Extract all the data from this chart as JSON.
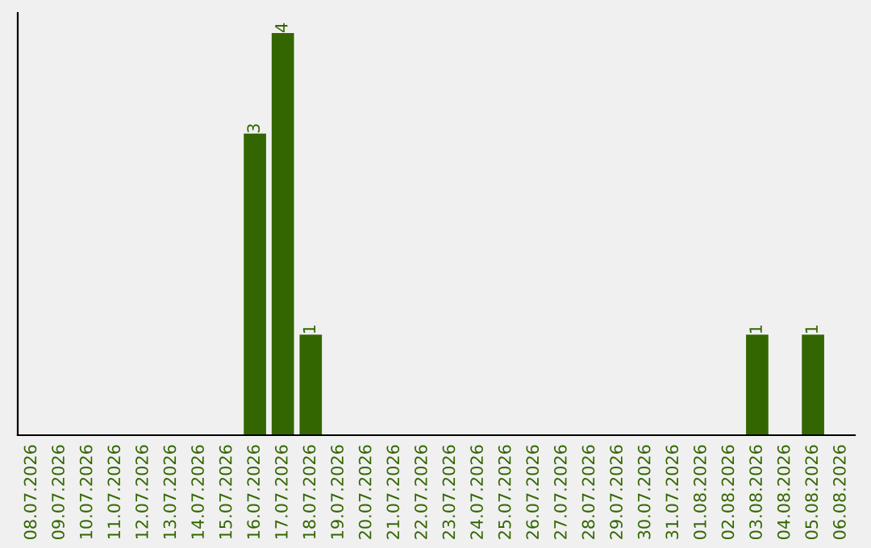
{
  "chart_data": {
    "type": "bar",
    "categories": [
      "08.07.2026",
      "09.07.2026",
      "10.07.2026",
      "11.07.2026",
      "12.07.2026",
      "13.07.2026",
      "14.07.2026",
      "15.07.2026",
      "16.07.2026",
      "17.07.2026",
      "18.07.2026",
      "19.07.2026",
      "20.07.2026",
      "21.07.2026",
      "22.07.2026",
      "23.07.2026",
      "24.07.2026",
      "25.07.2026",
      "26.07.2026",
      "27.07.2026",
      "28.07.2026",
      "29.07.2026",
      "30.07.2026",
      "31.07.2026",
      "01.08.2026",
      "02.08.2026",
      "03.08.2026",
      "04.08.2026",
      "05.08.2026",
      "06.08.2026"
    ],
    "values": [
      0,
      0,
      0,
      0,
      0,
      0,
      0,
      0,
      3,
      4,
      1,
      0,
      0,
      0,
      0,
      0,
      0,
      0,
      0,
      0,
      0,
      0,
      0,
      0,
      0,
      0,
      1,
      0,
      1,
      0
    ],
    "value_labels": [
      null,
      null,
      null,
      null,
      null,
      null,
      null,
      null,
      "3",
      "4",
      "1",
      null,
      null,
      null,
      null,
      null,
      null,
      null,
      null,
      null,
      null,
      null,
      null,
      null,
      null,
      null,
      "1",
      null,
      "1",
      null
    ],
    "color": "#336600",
    "ylim": [
      0,
      4.2
    ],
    "tick_labels": "x",
    "grid": false,
    "legend": false
  }
}
